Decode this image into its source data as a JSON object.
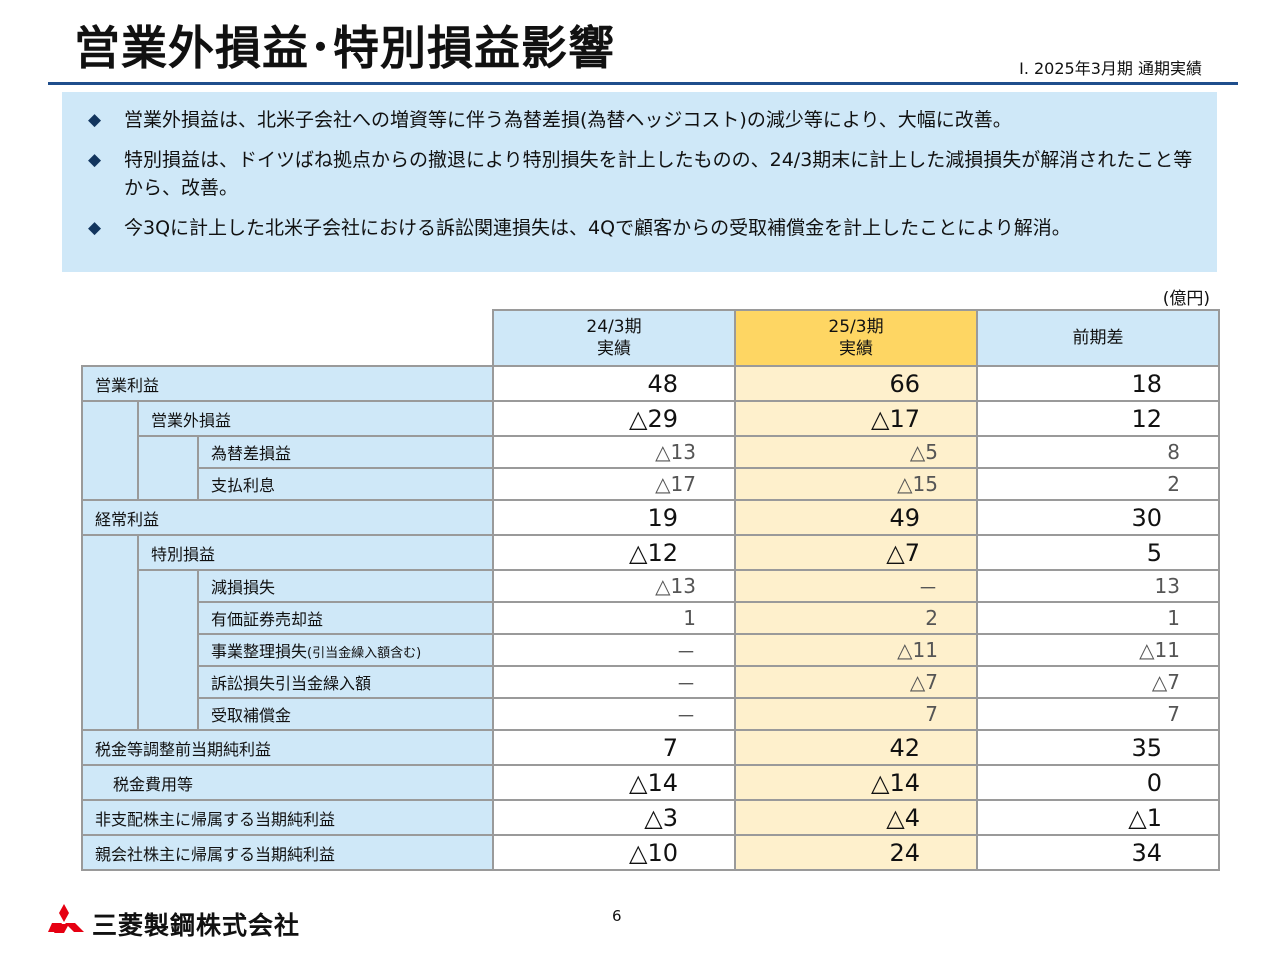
{
  "header": {
    "title": "営業外損益･特別損益影響",
    "subtitle": "Ⅰ. 2025年3月期 通期実績"
  },
  "summary": {
    "bullets": [
      "営業外損益は、北米子会社への増資等に伴う為替差損(為替ヘッジコスト)の減少等により、大幅に改善。",
      "特別損益は、ドイツばね拠点からの撤退により特別損失を計上したものの、24/3期末に計上した減損損失が解消されたこと等から、改善。",
      "今3Qに計上した北米子会社における訴訟関連損失は、4Qで顧客からの受取補償金を計上したことにより解消。"
    ]
  },
  "table": {
    "unit": "(億円)",
    "headers": [
      "24/3期\n実績",
      "25/3期\n実績",
      "前期差"
    ],
    "rows": [
      {
        "label": "営業利益",
        "values": [
          "48",
          "66",
          "18"
        ]
      },
      {
        "label": "営業外損益",
        "values": [
          "△29",
          "△17",
          "12"
        ]
      },
      {
        "label": "為替差損益",
        "values": [
          "△13",
          "△5",
          "8"
        ]
      },
      {
        "label": "支払利息",
        "values": [
          "△17",
          "△15",
          "2"
        ]
      },
      {
        "label": "経常利益",
        "values": [
          "19",
          "49",
          "30"
        ]
      },
      {
        "label": "特別損益",
        "values": [
          "△12",
          "△7",
          "5"
        ]
      },
      {
        "label": "減損損失",
        "values": [
          "△13",
          "－",
          "13"
        ]
      },
      {
        "label": "有価証券売却益",
        "values": [
          "1",
          "2",
          "1"
        ]
      },
      {
        "label": "事業整理損失",
        "note": "(引当金繰入額含む)",
        "values": [
          "－",
          "△11",
          "△11"
        ]
      },
      {
        "label": "訴訟損失引当金繰入額",
        "values": [
          "－",
          "△7",
          "△7"
        ]
      },
      {
        "label": "受取補償金",
        "values": [
          "－",
          "7",
          "7"
        ]
      },
      {
        "label": "税金等調整前当期純利益",
        "values": [
          "7",
          "42",
          "35"
        ]
      },
      {
        "label": "税金費用等",
        "values": [
          "△14",
          "△14",
          "0"
        ]
      },
      {
        "label": "非支配株主に帰属する当期純利益",
        "values": [
          "△3",
          "△4",
          "△1"
        ]
      },
      {
        "label": "親会社株主に帰属する当期純利益",
        "values": [
          "△10",
          "24",
          "34"
        ]
      }
    ]
  },
  "footer": {
    "page_number": "6",
    "company": "三菱製鋼株式会社",
    "logo": "mitsubishi-three-diamonds-icon"
  },
  "colors": {
    "accent_blue": "#1f4e8c",
    "panel_blue": "#cfe8f8",
    "highlight_yellow": "#fed663",
    "highlight_yellow_light": "#fef0cc",
    "logo_red": "#e60012"
  }
}
